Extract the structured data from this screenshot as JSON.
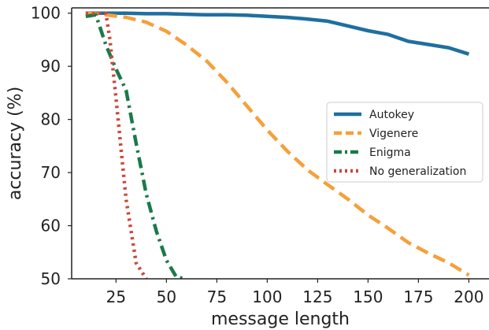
{
  "chart_data": {
    "type": "line",
    "title": "",
    "xlabel": "message length",
    "ylabel": "accuracy (%)",
    "xlim": [
      3,
      210
    ],
    "ylim": [
      50,
      101
    ],
    "xticks": [
      25,
      50,
      75,
      100,
      125,
      150,
      175,
      200
    ],
    "yticks": [
      50,
      60,
      70,
      80,
      90,
      100
    ],
    "grid": false,
    "legend_position": "right",
    "series": [
      {
        "name": "Autokey",
        "color": "#1f6f9f",
        "dash": "solid",
        "x": [
          10,
          20,
          30,
          40,
          50,
          60,
          70,
          80,
          90,
          100,
          110,
          120,
          130,
          140,
          150,
          160,
          170,
          180,
          190,
          200
        ],
        "y": [
          100,
          100,
          100,
          99.9,
          99.9,
          99.8,
          99.7,
          99.7,
          99.6,
          99.4,
          99.2,
          98.9,
          98.5,
          97.6,
          96.7,
          96.0,
          94.7,
          94.1,
          93.5,
          92.3
        ]
      },
      {
        "name": "Vigenere",
        "color": "#f5a03a",
        "dash": "dashed",
        "x": [
          10,
          20,
          30,
          40,
          50,
          60,
          70,
          80,
          90,
          100,
          110,
          120,
          130,
          140,
          150,
          160,
          170,
          180,
          190,
          200
        ],
        "y": [
          100,
          99.7,
          99.2,
          98.3,
          96.6,
          94,
          91,
          87,
          82.5,
          78,
          74,
          70.5,
          67.7,
          65,
          62,
          59.5,
          56.8,
          54.8,
          53,
          50.7
        ]
      },
      {
        "name": "Enigma",
        "color": "#1a7a4a",
        "dash": "dashdot",
        "x": [
          10,
          15,
          20,
          25,
          30,
          35,
          40,
          45,
          50,
          55,
          60
        ],
        "y": [
          99.4,
          99.7,
          94,
          89.5,
          85.5,
          75.5,
          66,
          59,
          53.5,
          50.3,
          50
        ]
      },
      {
        "name": "No generalization",
        "color": "#c9493b",
        "dash": "dotted",
        "x": [
          10,
          15,
          20,
          22,
          25,
          30,
          35,
          40
        ],
        "y": [
          100,
          100,
          100,
          95,
          84,
          65,
          53,
          50
        ]
      }
    ]
  }
}
